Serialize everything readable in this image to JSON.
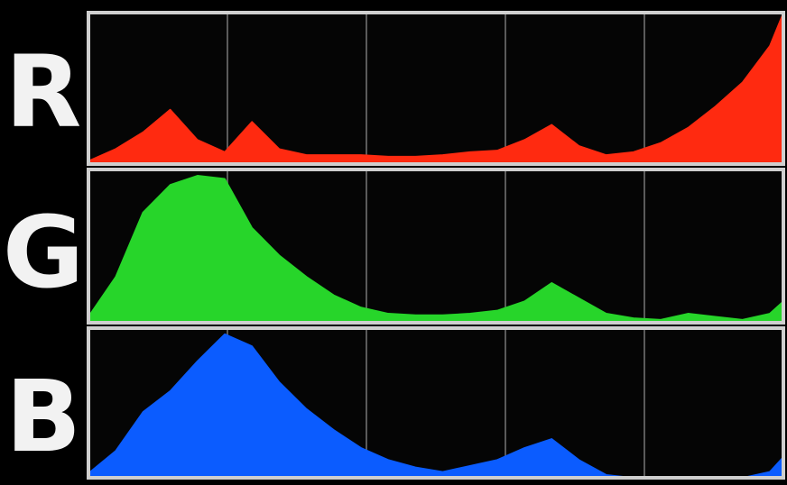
{
  "chart_data": {
    "type": "area",
    "xlim": [
      0,
      255
    ],
    "ylim": [
      0,
      100
    ],
    "grid": true,
    "grid_divisions": 5,
    "title": "",
    "xlabel": "",
    "ylabel": "",
    "channels": [
      {
        "label": "R",
        "color": "#ff2a10",
        "x": [
          0,
          10,
          20,
          30,
          40,
          50,
          60,
          70,
          80,
          90,
          100,
          110,
          120,
          130,
          140,
          150,
          160,
          170,
          180,
          190,
          200,
          210,
          220,
          230,
          240,
          250,
          255
        ],
        "values": [
          2,
          10,
          21,
          36,
          16,
          8,
          28,
          10,
          6,
          6,
          6,
          5,
          5,
          6,
          8,
          9,
          16,
          26,
          12,
          6,
          8,
          14,
          24,
          38,
          54,
          78,
          100
        ]
      },
      {
        "label": "G",
        "color": "#27d52a",
        "x": [
          0,
          10,
          20,
          30,
          40,
          50,
          60,
          70,
          80,
          90,
          100,
          110,
          120,
          130,
          140,
          150,
          160,
          170,
          180,
          190,
          200,
          210,
          220,
          230,
          240,
          250,
          255
        ],
        "values": [
          4,
          30,
          72,
          90,
          96,
          94,
          62,
          44,
          30,
          18,
          10,
          6,
          5,
          5,
          6,
          8,
          14,
          26,
          16,
          6,
          3,
          2,
          6,
          4,
          2,
          6,
          14
        ]
      },
      {
        "label": "B",
        "color": "#0b5cff",
        "x": [
          0,
          10,
          20,
          30,
          40,
          50,
          60,
          70,
          80,
          90,
          100,
          110,
          120,
          130,
          140,
          150,
          160,
          170,
          180,
          190,
          200,
          210,
          220,
          230,
          240,
          250,
          255
        ],
        "values": [
          3,
          18,
          44,
          58,
          78,
          96,
          88,
          64,
          46,
          32,
          20,
          12,
          7,
          4,
          8,
          12,
          20,
          26,
          12,
          2,
          0,
          0,
          0,
          0,
          0,
          4,
          14
        ]
      }
    ]
  }
}
